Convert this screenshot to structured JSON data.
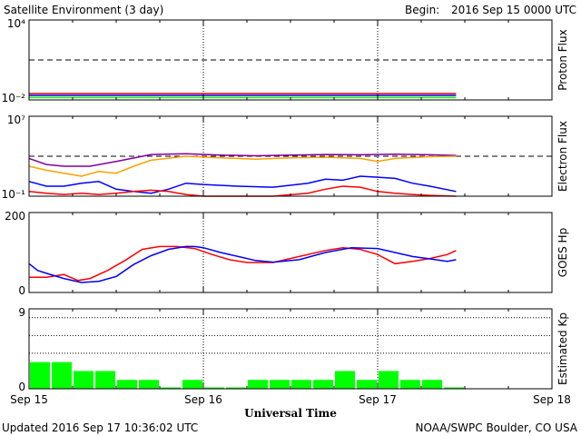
{
  "header": {
    "title": "Satellite Environment (3 day)",
    "begin_label": "Begin:",
    "begin_value": "2016 Sep 15 0000 UTC"
  },
  "footer": {
    "updated": "Updated 2016 Sep 17 10:36:02 UTC",
    "credit": "NOAA/SWPC Boulder, CO USA"
  },
  "chart_data": [
    {
      "type": "line",
      "ylabel": "Proton Flux",
      "yscale": "log",
      "ylim": [
        0.01,
        10000
      ],
      "ytick_labels": [
        "10⁴",
        "10⁻²"
      ],
      "threshold": 10,
      "series": [
        {
          "color": "#ff0000",
          "x": [
            0,
            0.5,
            1,
            1.5,
            2,
            2.45
          ],
          "y": [
            0.03,
            0.03,
            0.03,
            0.03,
            0.03,
            0.03
          ]
        },
        {
          "color": "#0000ff",
          "x": [
            0,
            0.5,
            1,
            1.5,
            2,
            2.45
          ],
          "y": [
            0.022,
            0.022,
            0.022,
            0.022,
            0.022,
            0.022
          ]
        },
        {
          "color": "#00ff00",
          "x": [
            0,
            0.5,
            1,
            1.5,
            2,
            2.45
          ],
          "y": [
            0.015,
            0.015,
            0.015,
            0.015,
            0.015,
            0.015
          ]
        }
      ]
    },
    {
      "type": "line",
      "ylabel": "Electron Flux",
      "yscale": "log",
      "ylim": [
        0.1,
        10000000
      ],
      "ytick_labels": [
        "10⁷",
        "10⁻¹"
      ],
      "threshold": 1000,
      "series": [
        {
          "color": "#8000a0",
          "x": [
            0,
            0.1,
            0.2,
            0.35,
            0.5,
            0.7,
            0.9,
            1.1,
            1.3,
            1.5,
            1.7,
            1.9,
            2.1,
            2.3,
            2.45
          ],
          "y": [
            600,
            150,
            100,
            100,
            300,
            1500,
            1800,
            1300,
            1100,
            1300,
            1500,
            1400,
            1600,
            1400,
            1200
          ]
        },
        {
          "color": "#ffa000",
          "x": [
            0,
            0.1,
            0.2,
            0.3,
            0.4,
            0.5,
            0.6,
            0.7,
            0.9,
            1.1,
            1.3,
            1.5,
            1.7,
            1.9,
            2.0,
            2.1,
            2.3,
            2.45
          ],
          "y": [
            100,
            40,
            20,
            10,
            30,
            20,
            100,
            400,
            1000,
            700,
            500,
            700,
            800,
            600,
            300,
            600,
            900,
            1000
          ]
        },
        {
          "color": "#0000ff",
          "x": [
            0,
            0.1,
            0.2,
            0.3,
            0.4,
            0.5,
            0.6,
            0.7,
            0.8,
            0.9,
            1.0,
            1.2,
            1.4,
            1.6,
            1.7,
            1.8,
            1.9,
            2.0,
            2.1,
            2.2,
            2.3,
            2.45
          ],
          "y": [
            3,
            1,
            1,
            2,
            3,
            0.5,
            0.3,
            0.2,
            0.5,
            2,
            1.5,
            1,
            0.8,
            2,
            5,
            4,
            10,
            8,
            6,
            2,
            1,
            0.3
          ]
        },
        {
          "color": "#ff0000",
          "x": [
            0,
            0.1,
            0.2,
            0.3,
            0.4,
            0.5,
            0.6,
            0.7,
            0.8,
            0.9,
            1.0,
            1.2,
            1.4,
            1.6,
            1.7,
            1.8,
            1.9,
            2.0,
            2.1,
            2.2,
            2.3,
            2.45
          ],
          "y": [
            0.3,
            0.2,
            0.15,
            0.2,
            0.15,
            0.2,
            0.3,
            0.4,
            0.3,
            0.15,
            0.1,
            0.1,
            0.1,
            0.2,
            0.5,
            1,
            0.8,
            0.3,
            0.2,
            0.15,
            0.12,
            0.1
          ]
        }
      ]
    },
    {
      "type": "line",
      "ylabel": "GOES Hp",
      "ylim": [
        0,
        200
      ],
      "ytick_labels": [
        "200",
        "0"
      ],
      "series": [
        {
          "color": "#ff0000",
          "x": [
            0,
            0.1,
            0.2,
            0.28,
            0.35,
            0.45,
            0.55,
            0.65,
            0.75,
            0.85,
            0.95,
            1.05,
            1.15,
            1.25,
            1.4,
            1.55,
            1.7,
            1.8,
            1.9,
            2.0,
            2.1,
            2.2,
            2.3,
            2.4,
            2.45
          ],
          "y": [
            38,
            38,
            45,
            30,
            35,
            55,
            80,
            108,
            115,
            115,
            110,
            95,
            82,
            75,
            75,
            90,
            105,
            112,
            108,
            95,
            72,
            78,
            85,
            95,
            105
          ]
        },
        {
          "color": "#0000ff",
          "x": [
            0,
            0.05,
            0.1,
            0.2,
            0.3,
            0.4,
            0.5,
            0.6,
            0.7,
            0.8,
            0.9,
            0.95,
            1.0,
            1.1,
            1.2,
            1.3,
            1.4,
            1.55,
            1.7,
            1.85,
            2.0,
            2.1,
            2.2,
            2.3,
            2.4,
            2.45
          ],
          "y": [
            72,
            55,
            48,
            35,
            25,
            28,
            40,
            70,
            92,
            108,
            115,
            115,
            112,
            100,
            90,
            80,
            76,
            82,
            100,
            112,
            110,
            100,
            90,
            84,
            78,
            82
          ]
        }
      ]
    },
    {
      "type": "bar",
      "ylabel": "Estimated Kp",
      "ylim": [
        0,
        9
      ],
      "ytick_labels": [
        "9",
        "0"
      ],
      "gridlines": [
        4,
        6,
        8
      ],
      "color": "#00ff00",
      "x": [
        0,
        0.125,
        0.25,
        0.375,
        0.5,
        0.625,
        0.75,
        0.875,
        1.0,
        1.125,
        1.25,
        1.375,
        1.5,
        1.625,
        1.75,
        1.875,
        2.0,
        2.125,
        2.25,
        2.375
      ],
      "values": [
        3,
        3,
        2,
        2,
        1,
        1,
        0,
        1,
        0,
        0,
        1,
        1,
        1,
        1,
        2,
        1,
        2,
        1,
        1,
        0
      ]
    }
  ],
  "xaxis": {
    "label": "Universal Time",
    "tick_labels": [
      "Sep 15",
      "Sep 16",
      "Sep 17",
      "Sep 18"
    ],
    "range_days": [
      0,
      3
    ]
  }
}
